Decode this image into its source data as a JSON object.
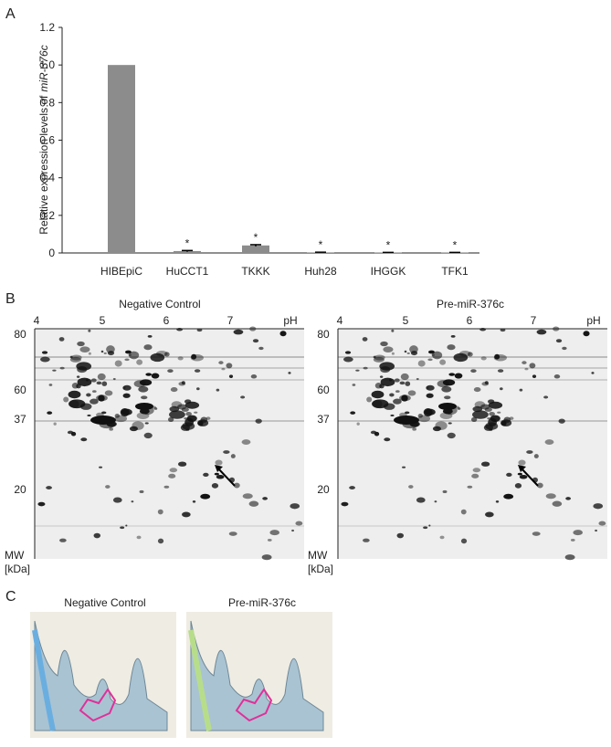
{
  "panels": {
    "a": "A",
    "b": "B",
    "c": "C"
  },
  "chart_data": {
    "type": "bar",
    "ylabel": {
      "text": "Relative expression levels of",
      "italic": "miR-376c"
    },
    "categories": [
      "HIBEpiC",
      "HuCCT1",
      "TKKK",
      "Huh28",
      "IHGGK",
      "TFK1"
    ],
    "values": [
      1,
      0.01,
      0.04,
      0.003,
      0.002,
      0.002
    ],
    "errors": [
      null,
      0.003,
      0.004,
      0.001,
      0.001,
      0.001
    ],
    "significance": [
      null,
      "*",
      "*",
      "*",
      "*",
      "*"
    ],
    "color": "#8c8c8c",
    "ylim": [
      0,
      1.2
    ],
    "yticks": [
      0,
      0.2,
      0.4,
      0.6,
      0.8,
      {
        "value": 1,
        "label": "1.0"
      },
      1.2
    ]
  },
  "gels": {
    "titles": [
      "Negative Control",
      "Pre-miR-376c"
    ],
    "ph_ticks": [
      "4",
      "5",
      "6",
      "7",
      "pH"
    ],
    "mw_ticks": [
      "80",
      "60",
      "37",
      "20"
    ],
    "mw_unit": [
      "MW",
      "[kDa]"
    ]
  },
  "views_3d": {
    "titles": [
      "Negative Control",
      "Pre-miR-376c"
    ]
  }
}
